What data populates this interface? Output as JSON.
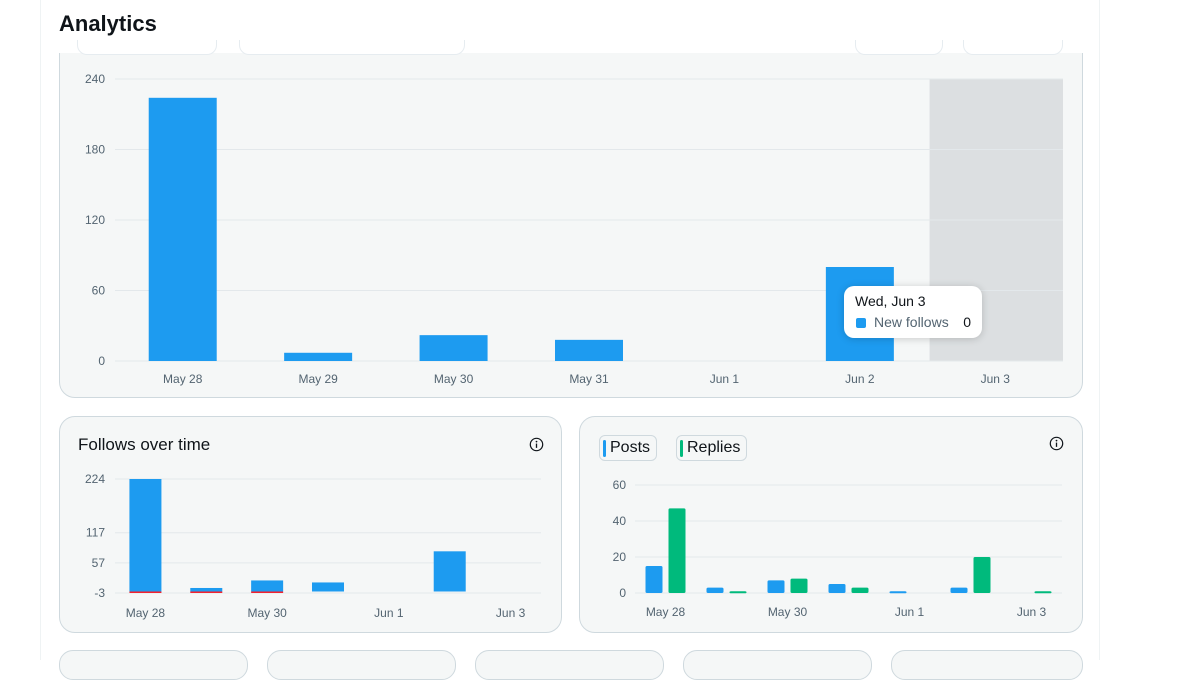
{
  "header": {
    "title": "Analytics"
  },
  "colors": {
    "blue": "#1d9bf0",
    "green": "#00ba7c",
    "red": "#f4212e",
    "highlight": "#dcdfe1"
  },
  "tooltip": {
    "date": "Wed, Jun 3",
    "series": "New follows",
    "value": "0"
  },
  "follows_card": {
    "title": "Follows over time"
  },
  "engagement_card": {
    "legend": [
      "Posts",
      "Replies"
    ]
  },
  "chart_data": [
    {
      "type": "bar",
      "categories": [
        "May 28",
        "May 29",
        "May 30",
        "May 31",
        "Jun 1",
        "Jun 2",
        "Jun 3"
      ],
      "series": [
        {
          "name": "New follows",
          "values": [
            224,
            7,
            22,
            18,
            0,
            80,
            0
          ]
        }
      ],
      "yticks": [
        0,
        60,
        120,
        180,
        240
      ],
      "ylim": [
        0,
        240
      ],
      "highlighted": "Jun 3",
      "grid": true
    },
    {
      "type": "bar",
      "title": "Follows over time",
      "categories": [
        "May 28",
        "May 29",
        "May 30",
        "May 31",
        "Jun 1",
        "Jun 2",
        "Jun 3"
      ],
      "series": [
        {
          "values": [
            224,
            7,
            22,
            18,
            0,
            80,
            0
          ]
        },
        {
          "values": [
            -3,
            -1,
            -3,
            0,
            0,
            0,
            0
          ]
        }
      ],
      "xticks": [
        "May 28",
        "May 30",
        "Jun 1",
        "Jun 3"
      ],
      "yticks": [
        -3,
        57,
        117,
        224
      ],
      "ylim": [
        -3,
        224
      ],
      "grid": true
    },
    {
      "type": "bar",
      "categories": [
        "May 28",
        "May 29",
        "May 30",
        "May 31",
        "Jun 1",
        "Jun 2",
        "Jun 3"
      ],
      "series": [
        {
          "name": "Posts",
          "values": [
            15,
            3,
            7,
            5,
            1,
            3,
            0
          ]
        },
        {
          "name": "Replies",
          "values": [
            47,
            1,
            8,
            3,
            0,
            20,
            1
          ]
        }
      ],
      "xticks": [
        "May 28",
        "May 30",
        "Jun 1",
        "Jun 3"
      ],
      "yticks": [
        0,
        20,
        40,
        60
      ],
      "ylim": [
        0,
        60
      ],
      "legend": "top-left",
      "grid": true
    }
  ]
}
